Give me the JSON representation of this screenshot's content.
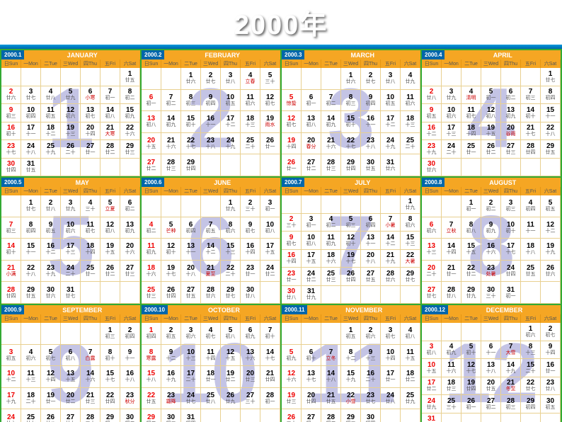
{
  "title": "2000年",
  "dow_labels": [
    "日Sun",
    "一Mon",
    "二Tue",
    "三Wed",
    "四Thu",
    "五Fri",
    "六Sat"
  ],
  "lunar_sample": [
    "初一",
    "初二",
    "初三",
    "初四",
    "初五",
    "初六",
    "初七",
    "初八",
    "初九",
    "初十",
    "十一",
    "十二",
    "十三",
    "十四",
    "十五",
    "十六",
    "十七",
    "十八",
    "十九",
    "二十",
    "廿一",
    "廿二",
    "廿三",
    "廿四",
    "廿五",
    "廿六",
    "廿七",
    "廿八",
    "廿九",
    "三十"
  ],
  "colors": {
    "header_orange": "#f5a623",
    "header_blue": "#0066aa",
    "grid_green": "#33aa33",
    "cell_border": "#e8d090",
    "watermark": "#8a8acc",
    "sunday_red": "#ee0000",
    "blue_bar": "#0099dd"
  },
  "months": [
    {
      "label": "2000.1",
      "name": "JANUARY",
      "num": 1,
      "days": 31,
      "start": 6,
      "lunar_off": 24
    },
    {
      "label": "2000.2",
      "name": "FEBRUARY",
      "num": 2,
      "days": 29,
      "start": 2,
      "lunar_off": 25
    },
    {
      "label": "2000.3",
      "name": "MARCH",
      "num": 3,
      "days": 31,
      "start": 3,
      "lunar_off": 25
    },
    {
      "label": "2000.4",
      "name": "APRIL",
      "num": 4,
      "days": 30,
      "start": 6,
      "lunar_off": 26
    },
    {
      "label": "2000.5",
      "name": "MAY",
      "num": 5,
      "days": 31,
      "start": 1,
      "lunar_off": 26
    },
    {
      "label": "2000.6",
      "name": "JUNE",
      "num": 6,
      "days": 30,
      "start": 4,
      "lunar_off": 28
    },
    {
      "label": "2000.7",
      "name": "JULY",
      "num": 7,
      "days": 31,
      "start": 6,
      "lunar_off": 28
    },
    {
      "label": "2000.8",
      "name": "AUGUST",
      "num": 8,
      "days": 31,
      "start": 2,
      "lunar_off": 0
    },
    {
      "label": "2000.9",
      "name": "SEPTEMBER",
      "num": 9,
      "days": 30,
      "start": 5,
      "lunar_off": 2
    },
    {
      "label": "2000.10",
      "name": "OCTOBER",
      "num": 10,
      "days": 31,
      "start": 0,
      "lunar_off": 3
    },
    {
      "label": "2000.11",
      "name": "NOVEMBER",
      "num": 11,
      "days": 30,
      "start": 3,
      "lunar_off": 4
    },
    {
      "label": "2000.12",
      "name": "DECEMBER",
      "num": 12,
      "days": 31,
      "start": 5,
      "lunar_off": 5
    }
  ],
  "solar_terms": {
    "1": {
      "6": "小寒",
      "21": "大寒"
    },
    "2": {
      "4": "立春",
      "19": "雨水"
    },
    "3": {
      "5": "惊蛰",
      "20": "春分"
    },
    "4": {
      "4": "清明",
      "20": "谷雨"
    },
    "5": {
      "5": "立夏",
      "21": "小满"
    },
    "6": {
      "5": "芒种",
      "21": "夏至"
    },
    "7": {
      "7": "小暑",
      "22": "大暑"
    },
    "8": {
      "7": "立秋",
      "23": "处暑"
    },
    "9": {
      "7": "白露",
      "23": "秋分"
    },
    "10": {
      "8": "寒露",
      "23": "霜降"
    },
    "11": {
      "7": "立冬",
      "22": "小雪"
    },
    "12": {
      "7": "大雪",
      "21": "冬至"
    }
  }
}
